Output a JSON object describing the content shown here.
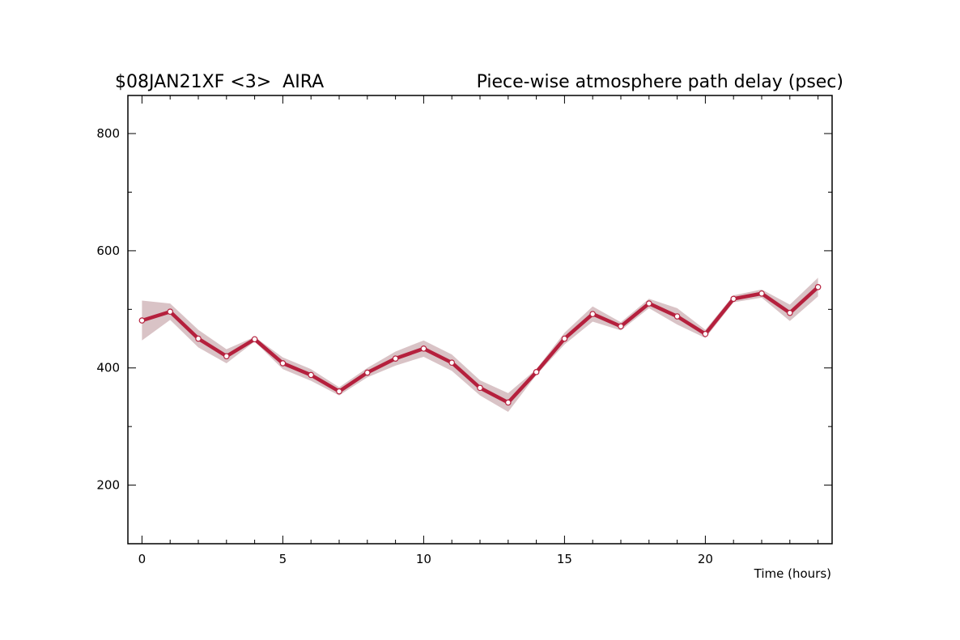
{
  "chart_data": {
    "type": "line",
    "title_left": "$08JAN21XF <3>  AIRA",
    "title_right": "Piece-wise atmosphere path delay (psec)",
    "xlabel": "Time (hours)",
    "ylabel": "",
    "xlim": [
      -0.5,
      24.5
    ],
    "ylim": [
      100,
      865
    ],
    "x_ticks": [
      0,
      5,
      10,
      15,
      20
    ],
    "y_ticks": [
      200,
      400,
      600,
      800
    ],
    "grid": false,
    "colors": {
      "line": "#b5203d",
      "band": "#d9c3c6",
      "marker_fill": "#ffffff",
      "axis": "#000000"
    },
    "series": [
      {
        "x": [
          0,
          1,
          2,
          3,
          4,
          5,
          6,
          7,
          8,
          9,
          10,
          11,
          12,
          13,
          14,
          15,
          16,
          17,
          18,
          19,
          20,
          21,
          22,
          23,
          24
        ],
        "y": [
          481,
          496,
          450,
          420,
          449,
          408,
          388,
          360,
          392,
          416,
          433,
          409,
          366,
          341,
          393,
          450,
          492,
          471,
          510,
          488,
          458,
          518,
          527,
          494,
          538
        ],
        "y_low": [
          447,
          482,
          435,
          408,
          445,
          398,
          378,
          353,
          384,
          404,
          419,
          395,
          353,
          325,
          388,
          440,
          479,
          464,
          502,
          474,
          451,
          512,
          520,
          480,
          522
        ],
        "y_high": [
          515,
          510,
          465,
          432,
          453,
          418,
          398,
          367,
          400,
          428,
          447,
          423,
          379,
          357,
          398,
          460,
          505,
          478,
          518,
          502,
          465,
          524,
          534,
          508,
          554
        ]
      }
    ]
  }
}
